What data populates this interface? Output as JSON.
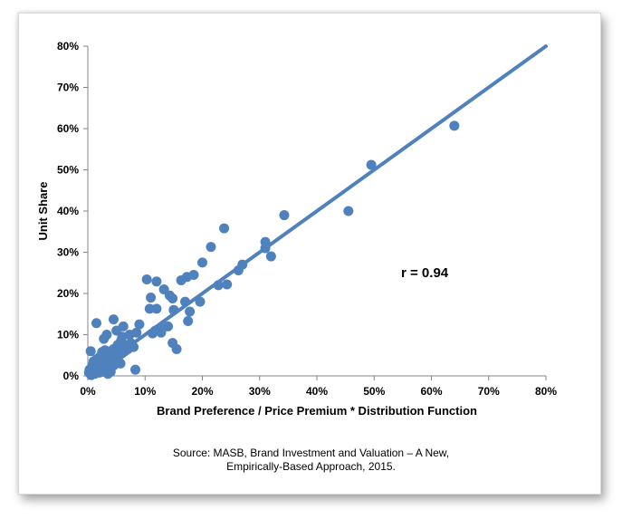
{
  "chart_data": {
    "type": "scatter",
    "title": "",
    "xlabel": "Brand Preference / Price Premium * Distribution Function",
    "ylabel": "Unit Share",
    "xlim": [
      0,
      0.8
    ],
    "ylim": [
      0,
      0.8
    ],
    "x_ticks": [
      "0%",
      "10%",
      "20%",
      "30%",
      "40%",
      "50%",
      "60%",
      "70%",
      "80%"
    ],
    "y_ticks": [
      "0%",
      "10%",
      "20%",
      "30%",
      "40%",
      "50%",
      "60%",
      "70%",
      "80%"
    ],
    "grid": false,
    "legend": "none",
    "marker_color": "#4f81bd",
    "line_color": "#4f81bd",
    "annotation": "r = 0.94",
    "trend_line": {
      "x": [
        0,
        0.8
      ],
      "y": [
        0,
        0.8
      ]
    },
    "series": [
      {
        "points": [
          [
            0.64,
            0.607
          ],
          [
            0.495,
            0.512
          ],
          [
            0.455,
            0.4
          ],
          [
            0.343,
            0.39
          ],
          [
            0.31,
            0.325
          ],
          [
            0.31,
            0.31
          ],
          [
            0.32,
            0.29
          ],
          [
            0.27,
            0.27
          ],
          [
            0.263,
            0.256
          ],
          [
            0.238,
            0.358
          ],
          [
            0.215,
            0.313
          ],
          [
            0.2,
            0.275
          ],
          [
            0.243,
            0.222
          ],
          [
            0.228,
            0.22
          ],
          [
            0.185,
            0.245
          ],
          [
            0.173,
            0.24
          ],
          [
            0.163,
            0.232
          ],
          [
            0.103,
            0.234
          ],
          [
            0.12,
            0.229
          ],
          [
            0.133,
            0.21
          ],
          [
            0.143,
            0.195
          ],
          [
            0.148,
            0.188
          ],
          [
            0.11,
            0.19
          ],
          [
            0.17,
            0.18
          ],
          [
            0.196,
            0.18
          ],
          [
            0.15,
            0.16
          ],
          [
            0.108,
            0.163
          ],
          [
            0.12,
            0.163
          ],
          [
            0.178,
            0.156
          ],
          [
            0.175,
            0.133
          ],
          [
            0.14,
            0.12
          ],
          [
            0.13,
            0.115
          ],
          [
            0.118,
            0.11
          ],
          [
            0.128,
            0.105
          ],
          [
            0.113,
            0.103
          ],
          [
            0.148,
            0.08
          ],
          [
            0.155,
            0.065
          ],
          [
            0.09,
            0.125
          ],
          [
            0.085,
            0.105
          ],
          [
            0.073,
            0.1
          ],
          [
            0.062,
            0.12
          ],
          [
            0.05,
            0.11
          ],
          [
            0.045,
            0.137
          ],
          [
            0.015,
            0.128
          ],
          [
            0.033,
            0.1
          ],
          [
            0.028,
            0.09
          ],
          [
            0.075,
            0.08
          ],
          [
            0.08,
            0.07
          ],
          [
            0.065,
            0.075
          ],
          [
            0.055,
            0.07
          ],
          [
            0.045,
            0.065
          ],
          [
            0.04,
            0.06
          ],
          [
            0.035,
            0.055
          ],
          [
            0.03,
            0.05
          ],
          [
            0.025,
            0.058
          ],
          [
            0.02,
            0.045
          ],
          [
            0.015,
            0.04
          ],
          [
            0.01,
            0.035
          ],
          [
            0.005,
            0.06
          ],
          [
            0.008,
            0.025
          ],
          [
            0.012,
            0.02
          ],
          [
            0.018,
            0.015
          ],
          [
            0.022,
            0.03
          ],
          [
            0.028,
            0.035
          ],
          [
            0.035,
            0.03
          ],
          [
            0.042,
            0.04
          ],
          [
            0.05,
            0.045
          ],
          [
            0.055,
            0.05
          ],
          [
            0.06,
            0.055
          ],
          [
            0.065,
            0.06
          ],
          [
            0.07,
            0.065
          ],
          [
            0.05,
            0.035
          ],
          [
            0.045,
            0.025
          ],
          [
            0.04,
            0.02
          ],
          [
            0.03,
            0.015
          ],
          [
            0.025,
            0.01
          ],
          [
            0.02,
            0.008
          ],
          [
            0.015,
            0.012
          ],
          [
            0.01,
            0.01
          ],
          [
            0.005,
            0.005
          ],
          [
            0.003,
            0.015
          ],
          [
            0.007,
            0.018
          ],
          [
            0.002,
            0.008
          ],
          [
            0.06,
            0.095
          ],
          [
            0.058,
            0.085
          ],
          [
            0.052,
            0.075
          ],
          [
            0.068,
            0.068
          ],
          [
            0.038,
            0.045
          ],
          [
            0.032,
            0.04
          ],
          [
            0.024,
            0.025
          ],
          [
            0.018,
            0.03
          ],
          [
            0.012,
            0.005
          ],
          [
            0.04,
            0.01
          ],
          [
            0.035,
            0.005
          ],
          [
            0.083,
            0.015
          ],
          [
            0.006,
            0.002
          ],
          [
            0.03,
            0.062
          ],
          [
            0.047,
            0.052
          ],
          [
            0.057,
            0.03
          ]
        ]
      }
    ]
  },
  "source": {
    "line1": "Source: MASB, Brand Investment and Valuation – A New,",
    "line2": "Empirically-Based Approach, 2015."
  }
}
